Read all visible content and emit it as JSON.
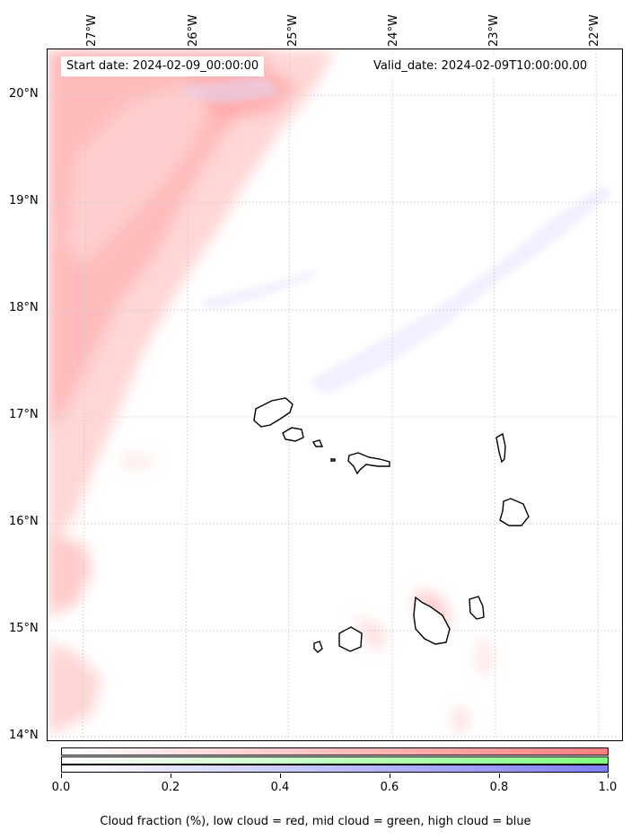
{
  "map": {
    "start_date": "Start date: 2024-02-09_00:00:00",
    "valid_date": "Valid_date: 2024-02-09T10:00:00.00",
    "lon_labels": [
      "27°W",
      "26°W",
      "25°W",
      "24°W",
      "23°W",
      "22°W"
    ],
    "lat_labels": [
      "20°N",
      "19°N",
      "18°N",
      "17°N",
      "16°N",
      "15°N",
      "14°N"
    ],
    "features": [
      "Santo Antão",
      "São Vicente",
      "Santa Luzia",
      "São Nicolau",
      "Sal",
      "Boa Vista",
      "Santiago",
      "Maio",
      "Fogo",
      "Brava"
    ],
    "colors": {
      "low_cloud": "#ff7f7f",
      "mid_cloud": "#7fff7f",
      "high_cloud": "#7f7fff",
      "grid": "#cccccc",
      "coastline": "#000000"
    }
  },
  "colorbar": {
    "tick_labels": [
      "0.0",
      "0.2",
      "0.4",
      "0.6",
      "0.8",
      "1.0"
    ],
    "caption": "Cloud fraction (%), low cloud = red, mid cloud = green, high cloud = blue"
  }
}
